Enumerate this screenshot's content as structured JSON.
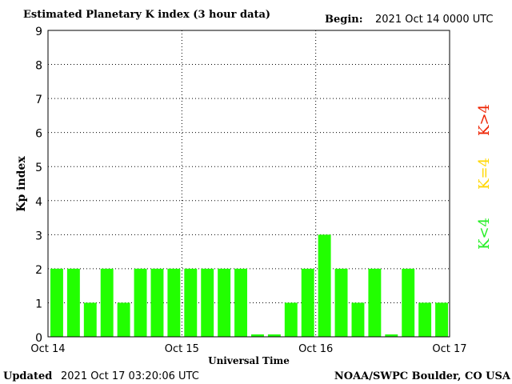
{
  "header": {
    "title": "Estimated Planetary K index (3 hour data)",
    "begin_label": "Begin:",
    "begin_value": "2021 Oct 14 0000 UTC"
  },
  "footer": {
    "updated_label": "Updated",
    "updated_value": "2021 Oct 17 03:20:06 UTC",
    "credit": "NOAA/SWPC Boulder, CO USA"
  },
  "legend": [
    {
      "label": "K<4",
      "color": "#22ee22"
    },
    {
      "label": "K=4",
      "color": "#ffd700"
    },
    {
      "label": "K>4",
      "color": "#ee2200"
    }
  ],
  "chart_data": {
    "type": "bar",
    "title": "Estimated Planetary K index (3 hour data)",
    "xlabel": "Universal Time",
    "ylabel": "Kp index",
    "ylim": [
      0,
      9
    ],
    "yticks": [
      "0",
      "1",
      "2",
      "3",
      "4",
      "5",
      "6",
      "7",
      "8",
      "9"
    ],
    "xticks": [
      "Oct 14",
      "Oct 15",
      "Oct 16",
      "Oct 17"
    ],
    "grid": true,
    "bar_color": "#22ff00",
    "values": [
      2,
      2,
      1,
      2,
      1,
      2,
      2,
      2,
      2,
      2,
      2,
      2,
      0.07,
      0.07,
      1,
      2,
      3,
      2,
      1,
      2,
      0.07,
      2,
      1,
      1
    ]
  }
}
